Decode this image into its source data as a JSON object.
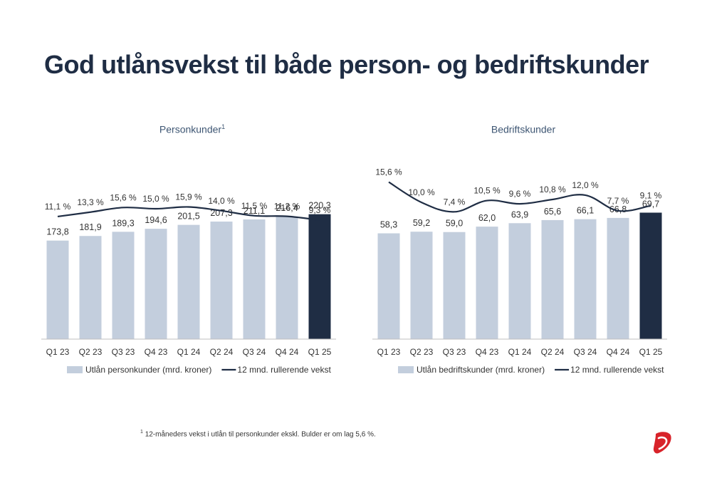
{
  "page": {
    "title": "God utlånsvekst til både person- og bedriftskunder",
    "footnote_marker": "1",
    "footnote": "12-måneders vekst i utlån til personkunder ekskl. Bulder er om lag 5,6 %."
  },
  "colors": {
    "bar": "#c3cedd",
    "bar_highlight": "#1f2d44",
    "line": "#1f2d44",
    "title": "#1f2d44",
    "subtitle": "#3e5673",
    "logo": "#d8232a"
  },
  "logo": {
    "icon": "brand-logo-icon"
  },
  "chart_data": [
    {
      "type": "bar",
      "title": "Personkunder",
      "title_marker": "1",
      "categories": [
        "Q1 23",
        "Q2 23",
        "Q3 23",
        "Q4 23",
        "Q1 24",
        "Q2 24",
        "Q3 24",
        "Q4 24",
        "Q1 25"
      ],
      "values": [
        173.8,
        181.9,
        189.3,
        194.6,
        201.5,
        207.3,
        211.1,
        216.4,
        220.3
      ],
      "value_labels": [
        "173,8",
        "181,9",
        "189,3",
        "194,6",
        "201,5",
        "207,3",
        "211,1",
        "216,4",
        "220,3"
      ],
      "highlight_index": 8,
      "series": [
        {
          "name": "Utlån personkunder (mrd. kroner)",
          "type": "bar"
        },
        {
          "name": "12 mnd. rullerende vekst",
          "type": "line",
          "values": [
            11.1,
            13.3,
            15.6,
            15.0,
            15.9,
            14.0,
            11.5,
            11.2,
            9.3
          ],
          "labels": [
            "11,1 %",
            "13,3 %",
            "15,6 %",
            "15,0 %",
            "15,9 %",
            "14,0 %",
            "11,5 %",
            "11,2 %",
            "9,3 %"
          ]
        }
      ],
      "ylim": [
        0,
        240
      ],
      "growth_range": [
        0,
        40
      ],
      "legend_placement": "bottom",
      "grid": false
    },
    {
      "type": "bar",
      "title": "Bedriftskunder",
      "title_marker": "",
      "categories": [
        "Q1 23",
        "Q2 23",
        "Q3 23",
        "Q4 23",
        "Q1 24",
        "Q2 24",
        "Q3 24",
        "Q4 24",
        "Q1 25"
      ],
      "values": [
        58.3,
        59.2,
        59.0,
        62.0,
        63.9,
        65.6,
        66.1,
        66.8,
        69.7
      ],
      "value_labels": [
        "58,3",
        "59,2",
        "59,0",
        "62,0",
        "63,9",
        "65,6",
        "66,1",
        "66,8",
        "69,7"
      ],
      "highlight_index": 8,
      "series": [
        {
          "name": "Utlån bedriftskunder (mrd. kroner)",
          "type": "bar"
        },
        {
          "name": "12 mnd. rullerende vekst",
          "type": "line",
          "values": [
            15.6,
            10.0,
            7.4,
            10.5,
            9.6,
            10.8,
            12.0,
            7.7,
            9.1
          ],
          "labels": [
            "15,6 %",
            "10,0 %",
            "7,4 %",
            "10,5 %",
            "9,6 %",
            "10,8 %",
            "12,0 %",
            "7,7 %",
            "9,1 %"
          ]
        }
      ],
      "ylim": [
        0,
        75
      ],
      "growth_range": [
        0,
        22
      ],
      "legend_placement": "bottom",
      "grid": false
    }
  ]
}
